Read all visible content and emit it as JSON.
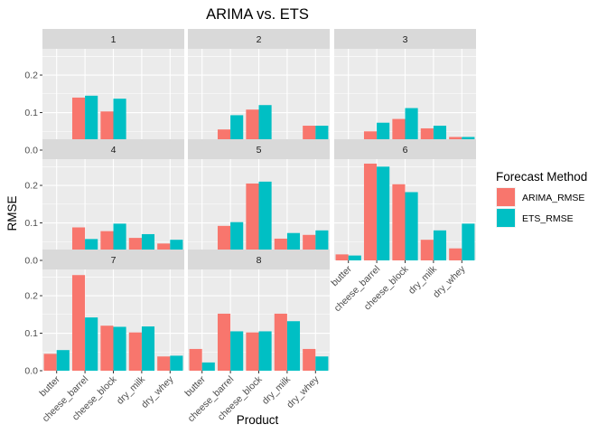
{
  "chart_data": {
    "type": "bar",
    "title": "ARIMA vs. ETS",
    "xlabel": "Product",
    "ylabel": "RMSE",
    "ylim": [
      0,
      0.27
    ],
    "yticks": [
      "0.0",
      "0.1",
      "0.2"
    ],
    "grid": true,
    "legend": {
      "title": "Forecast Method",
      "position": "right"
    },
    "categories": [
      "butter",
      "cheese_barrel",
      "cheese_block",
      "dry_milk",
      "dry_whey"
    ],
    "series_meta": [
      {
        "name": "ARIMA_RMSE",
        "color": "#F8766D"
      },
      {
        "name": "ETS_RMSE",
        "color": "#00BFC4"
      }
    ],
    "facets": [
      {
        "label": "1",
        "series": [
          {
            "name": "ARIMA_RMSE",
            "values": [
              0.003,
              0.14,
              0.103,
              0.028,
              0.022
            ]
          },
          {
            "name": "ETS_RMSE",
            "values": [
              0.012,
              0.145,
              0.137,
              0.028,
              0.022
            ]
          }
        ]
      },
      {
        "label": "2",
        "series": [
          {
            "name": "ARIMA_RMSE",
            "values": [
              0.027,
              0.055,
              0.108,
              0.012,
              0.065
            ]
          },
          {
            "name": "ETS_RMSE",
            "values": [
              0.027,
              0.093,
              0.12,
              0.012,
              0.065
            ]
          }
        ]
      },
      {
        "label": "3",
        "series": [
          {
            "name": "ARIMA_RMSE",
            "values": [
              0.012,
              0.05,
              0.083,
              0.058,
              0.035
            ]
          },
          {
            "name": "ETS_RMSE",
            "values": [
              0.012,
              0.073,
              0.112,
              0.065,
              0.035
            ]
          }
        ]
      },
      {
        "label": "4",
        "series": [
          {
            "name": "ARIMA_RMSE",
            "values": [
              0.011,
              0.088,
              0.078,
              0.06,
              0.045
            ]
          },
          {
            "name": "ETS_RMSE",
            "values": [
              0.011,
              0.057,
              0.098,
              0.07,
              0.055
            ]
          }
        ]
      },
      {
        "label": "5",
        "series": [
          {
            "name": "ARIMA_RMSE",
            "values": [
              0.026,
              0.092,
              0.205,
              0.058,
              0.068
            ]
          },
          {
            "name": "ETS_RMSE",
            "values": [
              0.026,
              0.102,
              0.21,
              0.073,
              0.08
            ]
          }
        ]
      },
      {
        "label": "6",
        "series": [
          {
            "name": "ARIMA_RMSE",
            "values": [
              0.016,
              0.258,
              0.203,
              0.055,
              0.032
            ]
          },
          {
            "name": "ETS_RMSE",
            "values": [
              0.013,
              0.25,
              0.182,
              0.08,
              0.098
            ]
          }
        ]
      },
      {
        "label": "7",
        "series": [
          {
            "name": "ARIMA_RMSE",
            "values": [
              0.045,
              0.255,
              0.12,
              0.102,
              0.038
            ]
          },
          {
            "name": "ETS_RMSE",
            "values": [
              0.055,
              0.142,
              0.117,
              0.118,
              0.04
            ]
          }
        ]
      },
      {
        "label": "8",
        "series": [
          {
            "name": "ARIMA_RMSE",
            "values": [
              0.058,
              0.152,
              0.102,
              0.152,
              0.058
            ]
          },
          {
            "name": "ETS_RMSE",
            "values": [
              0.022,
              0.105,
              0.105,
              0.132,
              0.038
            ]
          }
        ]
      }
    ]
  }
}
